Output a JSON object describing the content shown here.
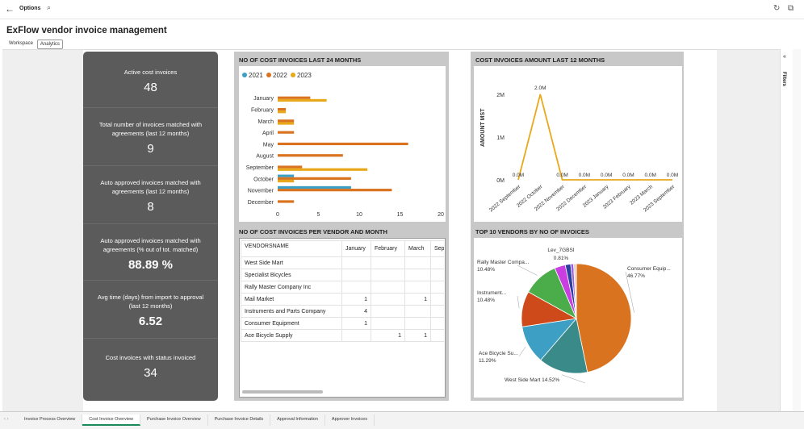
{
  "topbar": {
    "options_label": "Options"
  },
  "page": {
    "title": "ExFlow vendor invoice management"
  },
  "tabs": [
    {
      "label": "Workspace"
    },
    {
      "label": "Analytics"
    }
  ],
  "filters": {
    "label": "Filters",
    "chevron": "«"
  },
  "kpis": [
    {
      "label": "Active cost invoices",
      "value": "48"
    },
    {
      "label": "Total number of invoices matched with agreements (last 12 months)",
      "value": "9"
    },
    {
      "label": "Auto approved invoices matched with agreements (last 12 months)",
      "value": "8"
    },
    {
      "label": "Auto approved invoices matched with agreements (% out of tot. matched)",
      "value": "88.89 %"
    },
    {
      "label": "Avg time (days) from import to approval (last 12 months)",
      "value": "6.52"
    },
    {
      "label": "Cost invoices with status invoiced",
      "value": "34"
    }
  ],
  "panels": {
    "bar_title": "NO OF COST INVOICES LAST 24 MONTHS",
    "line_title": "COST INVOICES AMOUNT LAST 12 MONTHS",
    "table_title": "NO OF COST INVOICES PER VENDOR AND MONTH",
    "pie_title": "TOP 10 VENDORS BY NO OF INVOICES"
  },
  "colors": {
    "y2021": "#3d9fc4",
    "y2022": "#d9731f",
    "y2023": "#e8a81a",
    "kpi_bg": "#5b5b5b"
  },
  "chart_data": [
    {
      "type": "bar",
      "orientation": "horizontal",
      "categories": [
        "January",
        "February",
        "March",
        "April",
        "May",
        "August",
        "September",
        "October",
        "November",
        "December"
      ],
      "series": [
        {
          "name": "2021",
          "values": [
            0,
            0,
            0,
            0,
            0,
            0,
            0,
            2,
            9,
            0
          ]
        },
        {
          "name": "2022",
          "values": [
            4,
            1,
            2,
            2,
            16,
            8,
            3,
            9,
            14,
            2
          ]
        },
        {
          "name": "2023",
          "values": [
            6,
            1,
            2,
            0,
            0,
            0,
            11,
            2,
            0,
            0
          ]
        }
      ],
      "xticks": [
        "0",
        "5",
        "10",
        "15",
        "20"
      ],
      "xlim": [
        0,
        20
      ],
      "legend_position": "top-left"
    },
    {
      "type": "line",
      "x": [
        "2022 September",
        "2022 October",
        "2022 November",
        "2022 December",
        "2023 January",
        "2023 February",
        "2023 March",
        "2023 September"
      ],
      "values": [
        0,
        2000000,
        0,
        0,
        0,
        0,
        0,
        0
      ],
      "data_labels": [
        "0.0M",
        "2.0M",
        "0.0M",
        "0.0M",
        "0.0M",
        "0.0M",
        "0.0M",
        "0.0M"
      ],
      "ylabel": "AMOUNT MST",
      "yticks": [
        "0M",
        "1M",
        "2M"
      ],
      "ylim": [
        0,
        2000000
      ],
      "series_color": "#e8a81a"
    },
    {
      "type": "pie",
      "slices": [
        {
          "label": "Consumer Equip...",
          "pct": "46.77%",
          "value": 46.77,
          "color": "#d9731f"
        },
        {
          "label": "West Side Mart",
          "pct": "14.52%",
          "value": 14.52,
          "color": "#3a8a8a"
        },
        {
          "label": "Ace Bicycle Su...",
          "pct": "11.29%",
          "value": 11.29,
          "color": "#3d9fc4"
        },
        {
          "label": "Instrument...",
          "pct": "10.48%",
          "value": 10.48,
          "color": "#cf4a1a"
        },
        {
          "label": "Rally Master Compa...",
          "pct": "10.48%",
          "value": 10.48,
          "color": "#4aad4a"
        },
        {
          "label": "",
          "pct": "",
          "value": 3.2,
          "color": "#c83ee0"
        },
        {
          "label": "",
          "pct": "",
          "value": 1.6,
          "color": "#2a3fa0"
        },
        {
          "label": "",
          "pct": "",
          "value": 0.85,
          "color": "#9b5ce0"
        },
        {
          "label": "Lev_7GBSI",
          "pct": "0.81%",
          "value": 0.81,
          "color": "#e8d0c0"
        }
      ]
    },
    {
      "type": "table",
      "columns": [
        "VENDORSNAME",
        "January",
        "February",
        "March",
        "Sep"
      ],
      "rows": [
        [
          "West Side Mart",
          "",
          "",
          "",
          ""
        ],
        [
          "Specialist Bicycles",
          "",
          "",
          "",
          ""
        ],
        [
          "Rally Master Company Inc",
          "",
          "",
          "",
          ""
        ],
        [
          "Mail Market",
          "1",
          "",
          "1",
          ""
        ],
        [
          "Instruments and Parts Company",
          "4",
          "",
          "",
          ""
        ],
        [
          "Consumer Equipment",
          "1",
          "",
          "",
          ""
        ],
        [
          "Ace Bicycle Supply",
          "",
          "1",
          "1",
          ""
        ]
      ]
    }
  ],
  "bottom_tabs": [
    {
      "label": "Invoice Process Overview"
    },
    {
      "label": "Cost Invoice Overview"
    },
    {
      "label": "Purchase Invoice Overview"
    },
    {
      "label": "Purchase Invoice Details"
    },
    {
      "label": "Approval Information"
    },
    {
      "label": "Approver Invoices"
    }
  ]
}
